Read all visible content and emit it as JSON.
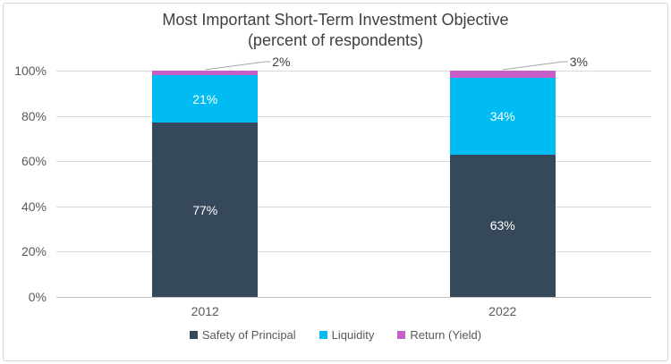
{
  "chart_data": {
    "type": "bar",
    "stacked": true,
    "title": "Most Important Short-Term Investment Objective",
    "subtitle": "(percent of respondents)",
    "categories": [
      "2012",
      "2022"
    ],
    "series": [
      {
        "name": "Safety of Principal",
        "color": "#36495A",
        "values": [
          77,
          63
        ],
        "labels": [
          "77%",
          "63%"
        ],
        "label_style": "inside"
      },
      {
        "name": "Liquidity",
        "color": "#00BCF2",
        "values": [
          21,
          34
        ],
        "labels": [
          "21%",
          "34%"
        ],
        "label_style": "inside"
      },
      {
        "name": "Return (Yield)",
        "color": "#C85FC9",
        "values": [
          2,
          3
        ],
        "labels": [
          "2%",
          "3%"
        ],
        "label_style": "callout"
      }
    ],
    "ylim": [
      0,
      100
    ],
    "ytick_values": [
      0,
      20,
      40,
      60,
      80,
      100
    ],
    "ytick_labels": [
      "0%",
      "20%",
      "40%",
      "60%",
      "80%",
      "100%"
    ],
    "grid": true,
    "legend_position": "bottom",
    "colors": {
      "gridline": "#DADADA",
      "zero_axis": "#BFBFBF",
      "leader_line": "#A6A6A6",
      "title_text": "#404040",
      "axis_text": "#595959",
      "data_label_inside": "#FFFFFF"
    }
  }
}
